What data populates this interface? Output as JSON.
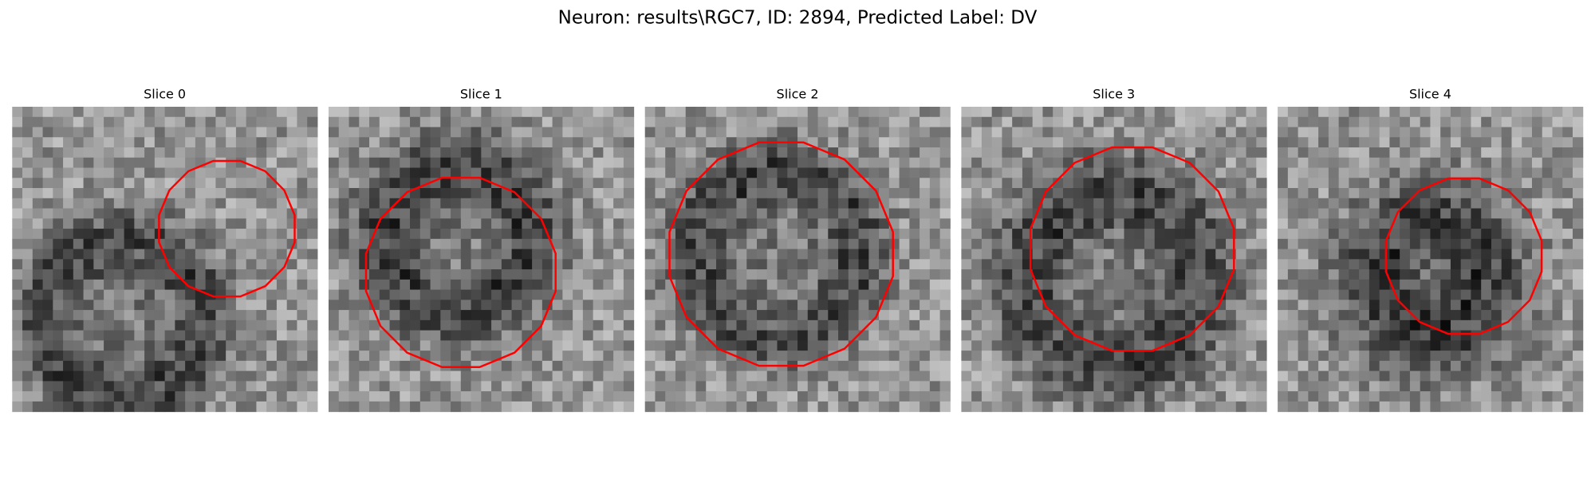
{
  "title": "Neuron: results\\RGC7, ID: 2894, Predicted Label: DV",
  "panels": [
    {
      "title": "Slice 0"
    },
    {
      "title": "Slice 1"
    },
    {
      "title": "Slice 2"
    },
    {
      "title": "Slice 3"
    },
    {
      "title": "Slice 4"
    }
  ]
}
